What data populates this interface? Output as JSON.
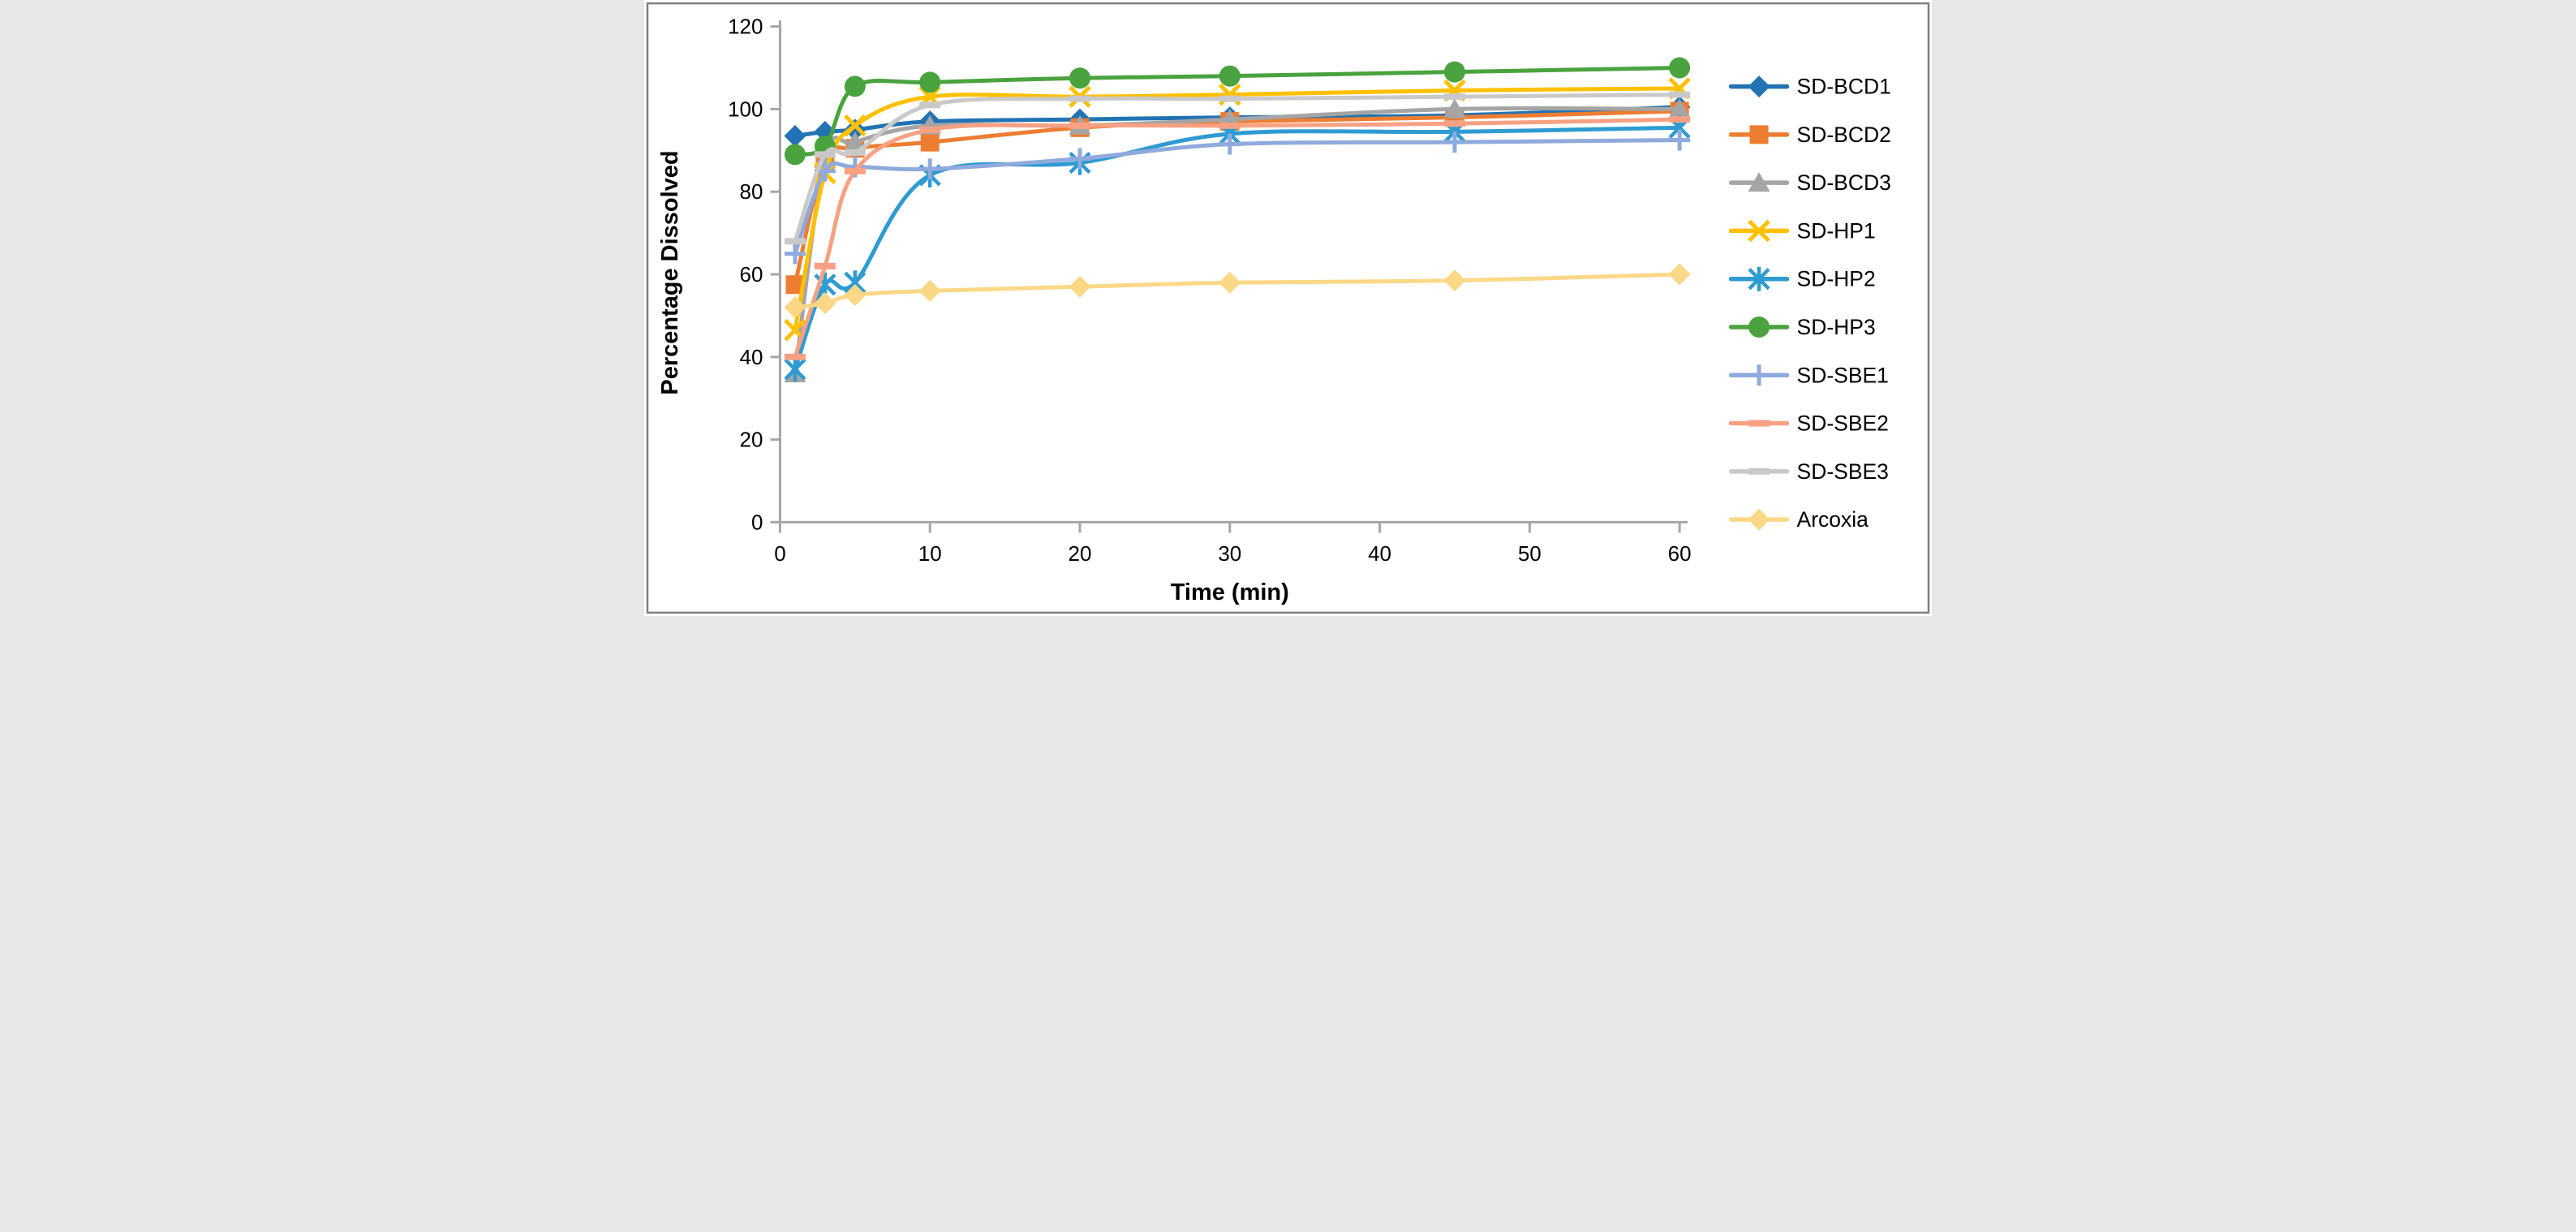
{
  "figure": {
    "background": "#FFFFFF",
    "border_color": "#7F7F7F",
    "axis_color": "#A6A6A6",
    "text_color": "#000000"
  },
  "chart_data": {
    "type": "line",
    "title": "",
    "xlabel": "Time (min)",
    "ylabel": "Percentage Dissolved",
    "x": [
      1,
      3,
      5,
      10,
      20,
      30,
      45,
      60
    ],
    "xlim": [
      0,
      60
    ],
    "ylim": [
      0,
      120
    ],
    "xticks": [
      0,
      10,
      20,
      30,
      40,
      50,
      60
    ],
    "yticks": [
      0,
      20,
      40,
      60,
      80,
      100,
      120
    ],
    "grid": false,
    "legend_position": "right",
    "line_style": "smooth",
    "series": [
      {
        "name": "SD-BCD1",
        "color": "#2173B4",
        "marker": "diamond",
        "values": [
          93.5,
          94.5,
          95,
          97,
          97.5,
          98,
          98.5,
          100.5
        ]
      },
      {
        "name": "SD-BCD2",
        "color": "#ED7D31",
        "marker": "square",
        "values": [
          57.5,
          87.5,
          90.5,
          92,
          95.5,
          97,
          98,
          99.5
        ]
      },
      {
        "name": "SD-BCD3",
        "color": "#A5A5A5",
        "marker": "triangle",
        "values": [
          36,
          88,
          92,
          96,
          96,
          97.5,
          100,
          100
        ]
      },
      {
        "name": "SD-HP1",
        "color": "#FFC000",
        "marker": "x",
        "values": [
          46.5,
          84.5,
          96,
          103,
          103,
          103.5,
          104.5,
          105
        ]
      },
      {
        "name": "SD-HP2",
        "color": "#2E9BD2",
        "marker": "asterisk",
        "values": [
          37,
          57.5,
          58,
          84,
          87,
          94,
          94.5,
          95.5
        ]
      },
      {
        "name": "SD-HP3",
        "color": "#4AA33E",
        "marker": "circle",
        "values": [
          89,
          91,
          105.5,
          106.5,
          107.5,
          108,
          109,
          110
        ]
      },
      {
        "name": "SD-SBE1",
        "color": "#8FAADC",
        "marker": "plus",
        "values": [
          65,
          85,
          86,
          85.5,
          88,
          91.5,
          92,
          92.5
        ]
      },
      {
        "name": "SD-SBE2",
        "color": "#F7A182",
        "marker": "dash",
        "values": [
          40,
          62,
          85,
          95,
          96,
          96,
          96.5,
          97.5
        ]
      },
      {
        "name": "SD-SBE3",
        "color": "#C9C9C9",
        "marker": "dash",
        "values": [
          68,
          89,
          89.5,
          101,
          102.5,
          102.5,
          103,
          103.5
        ]
      },
      {
        "name": "Arcoxia",
        "color": "#FBD886",
        "marker": "diamond",
        "values": [
          52,
          53,
          55,
          56,
          57,
          58,
          58.5,
          60
        ]
      }
    ]
  }
}
